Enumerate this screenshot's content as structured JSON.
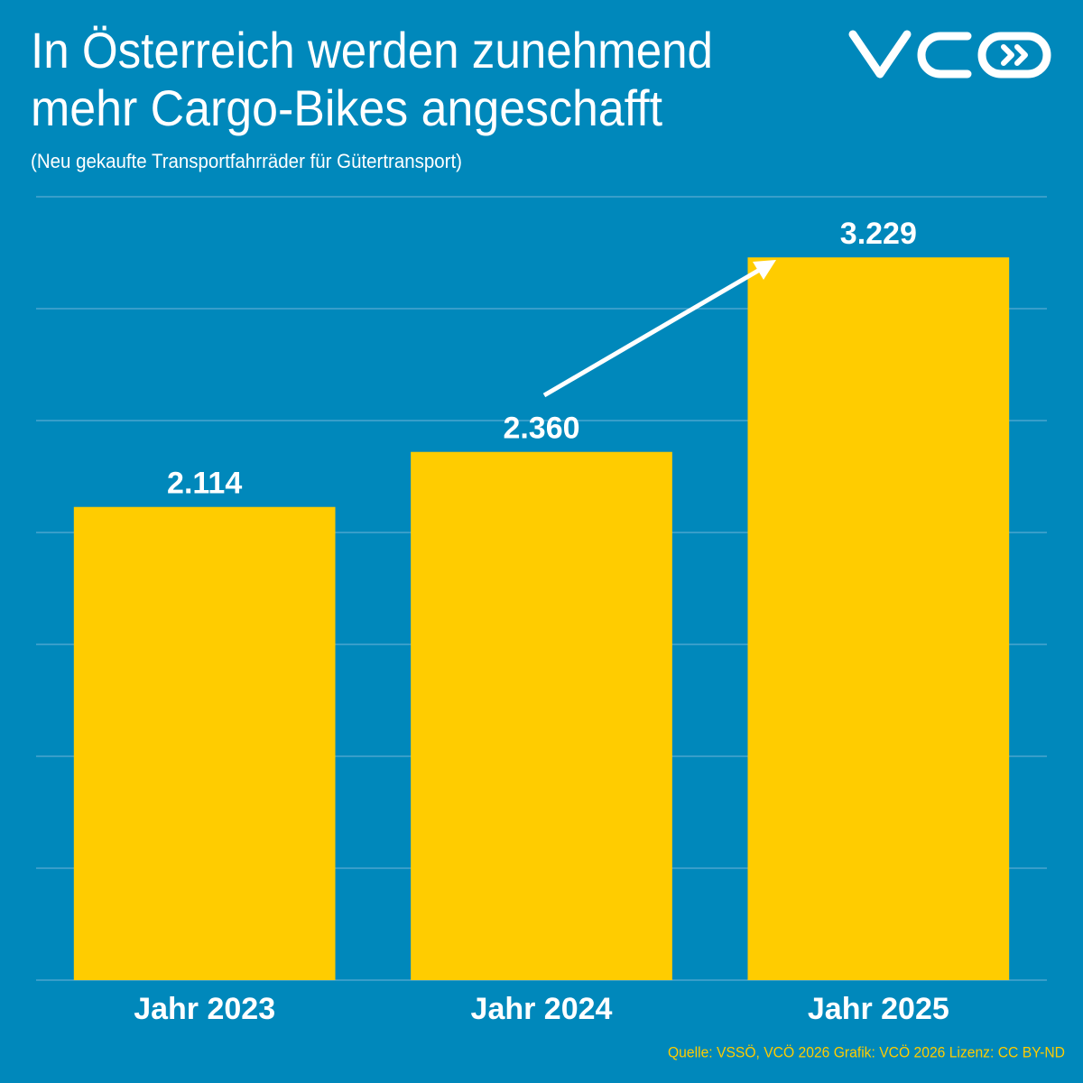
{
  "chart_data": {
    "type": "bar",
    "title": [
      "In Österreich werden zunehmend",
      "mehr Cargo-Bikes angeschafft"
    ],
    "subtitle": "(Neu gekaufte Transportfahrräder für Gütertransport)",
    "categories": [
      "Jahr 2023",
      "Jahr 2024",
      "Jahr 2025"
    ],
    "values": [
      2114,
      2360,
      3229
    ],
    "value_labels": [
      "2.114",
      "2.360",
      "3.229"
    ],
    "color": "#ffcc00",
    "ylim": [
      0,
      3500
    ],
    "yticks": [
      0,
      500,
      1000,
      1500,
      2000,
      2500,
      3000,
      3500
    ],
    "grid": true,
    "source": "Quelle: VSSÖ, VCÖ 2026 Grafik: VCÖ 2026 Lizenz: CC BY-ND"
  }
}
